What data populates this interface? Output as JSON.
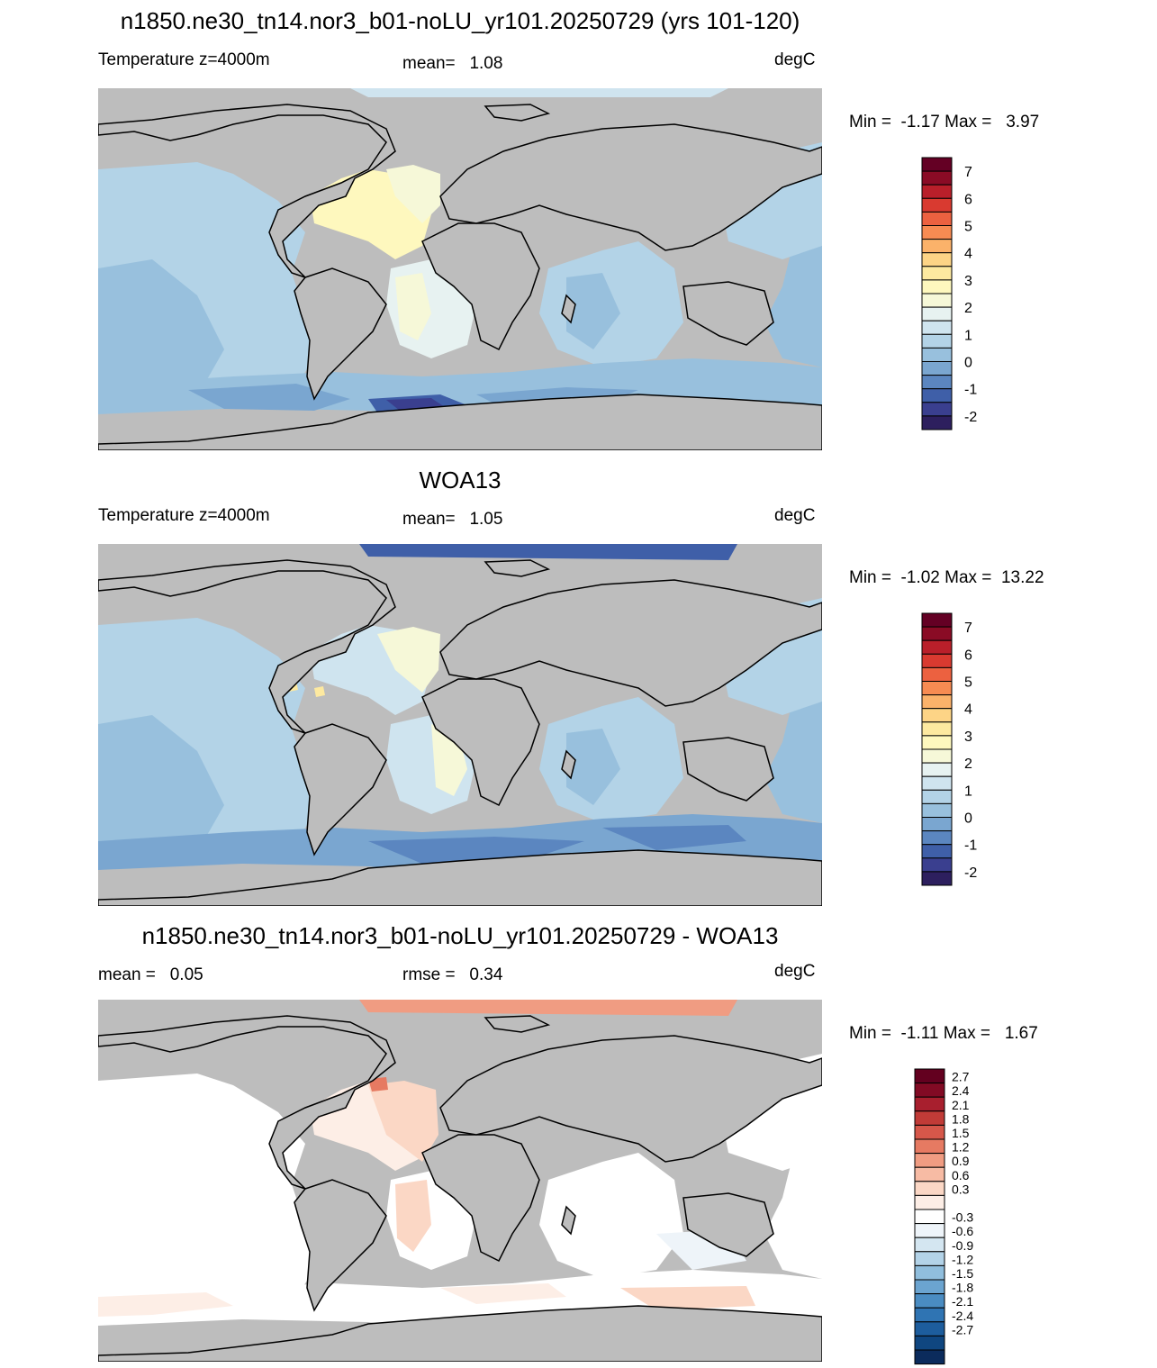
{
  "colors": {
    "land": "#bdbdbd",
    "coast": "#000000"
  },
  "panels": [
    {
      "title": "n1850.ne30_tn14.nor3_b01-noLU_yr101.20250729 (yrs 101-120)",
      "left_label": "Temperature z=4000m",
      "center_label": "mean=   1.08",
      "units": "degC",
      "minmax": "Min =  -1.17 Max =   3.97"
    },
    {
      "title": "WOA13",
      "left_label": "Temperature z=4000m",
      "center_label": "mean=   1.05",
      "units": "degC",
      "minmax": "Min =  -1.02 Max =  13.22"
    },
    {
      "title": "n1850.ne30_tn14.nor3_b01-noLU_yr101.20250729 - WOA13",
      "left_label": "mean =   0.05",
      "center_label": "rmse =   0.34",
      "units": "degC",
      "minmax": "Min =  -1.11 Max =   1.67"
    }
  ],
  "colorbar_temp": {
    "colors": [
      "#2d1f5e",
      "#3a3f8f",
      "#3f5fa8",
      "#5b86c0",
      "#7aa6d0",
      "#98c0dd",
      "#b3d3e7",
      "#cfe4ef",
      "#e7f2f1",
      "#f6f8d8",
      "#fef8be",
      "#fde9a0",
      "#fdd486",
      "#fbb26a",
      "#f78b52",
      "#ec6140",
      "#d93a30",
      "#b91f2a",
      "#8a0b25",
      "#640024"
    ],
    "labels": [
      "-2",
      "-1",
      "0",
      "1",
      "2",
      "3",
      "4",
      "5",
      "6",
      "7"
    ]
  },
  "colorbar_diff": {
    "colors": [
      "#0b2b5c",
      "#0f4680",
      "#1d5d9d",
      "#2f74b3",
      "#4a8cc2",
      "#6ba4d0",
      "#90bedd",
      "#b3d3e8",
      "#d4e6f1",
      "#eef4f9",
      "#ffffff",
      "#fdeee6",
      "#fbd7c5",
      "#f7bba4",
      "#f09c82",
      "#e67a62",
      "#d6574a",
      "#c13b37",
      "#a81f2e",
      "#820a24",
      "#63001f"
    ],
    "labels": [
      "-2.7",
      "-2.4",
      "-2.1",
      "-1.8",
      "-1.5",
      "-1.2",
      "-0.9",
      "-0.6",
      "-0.3",
      "0.3",
      "0.6",
      "0.9",
      "1.2",
      "1.5",
      "1.8",
      "2.1",
      "2.4",
      "2.7"
    ]
  }
}
